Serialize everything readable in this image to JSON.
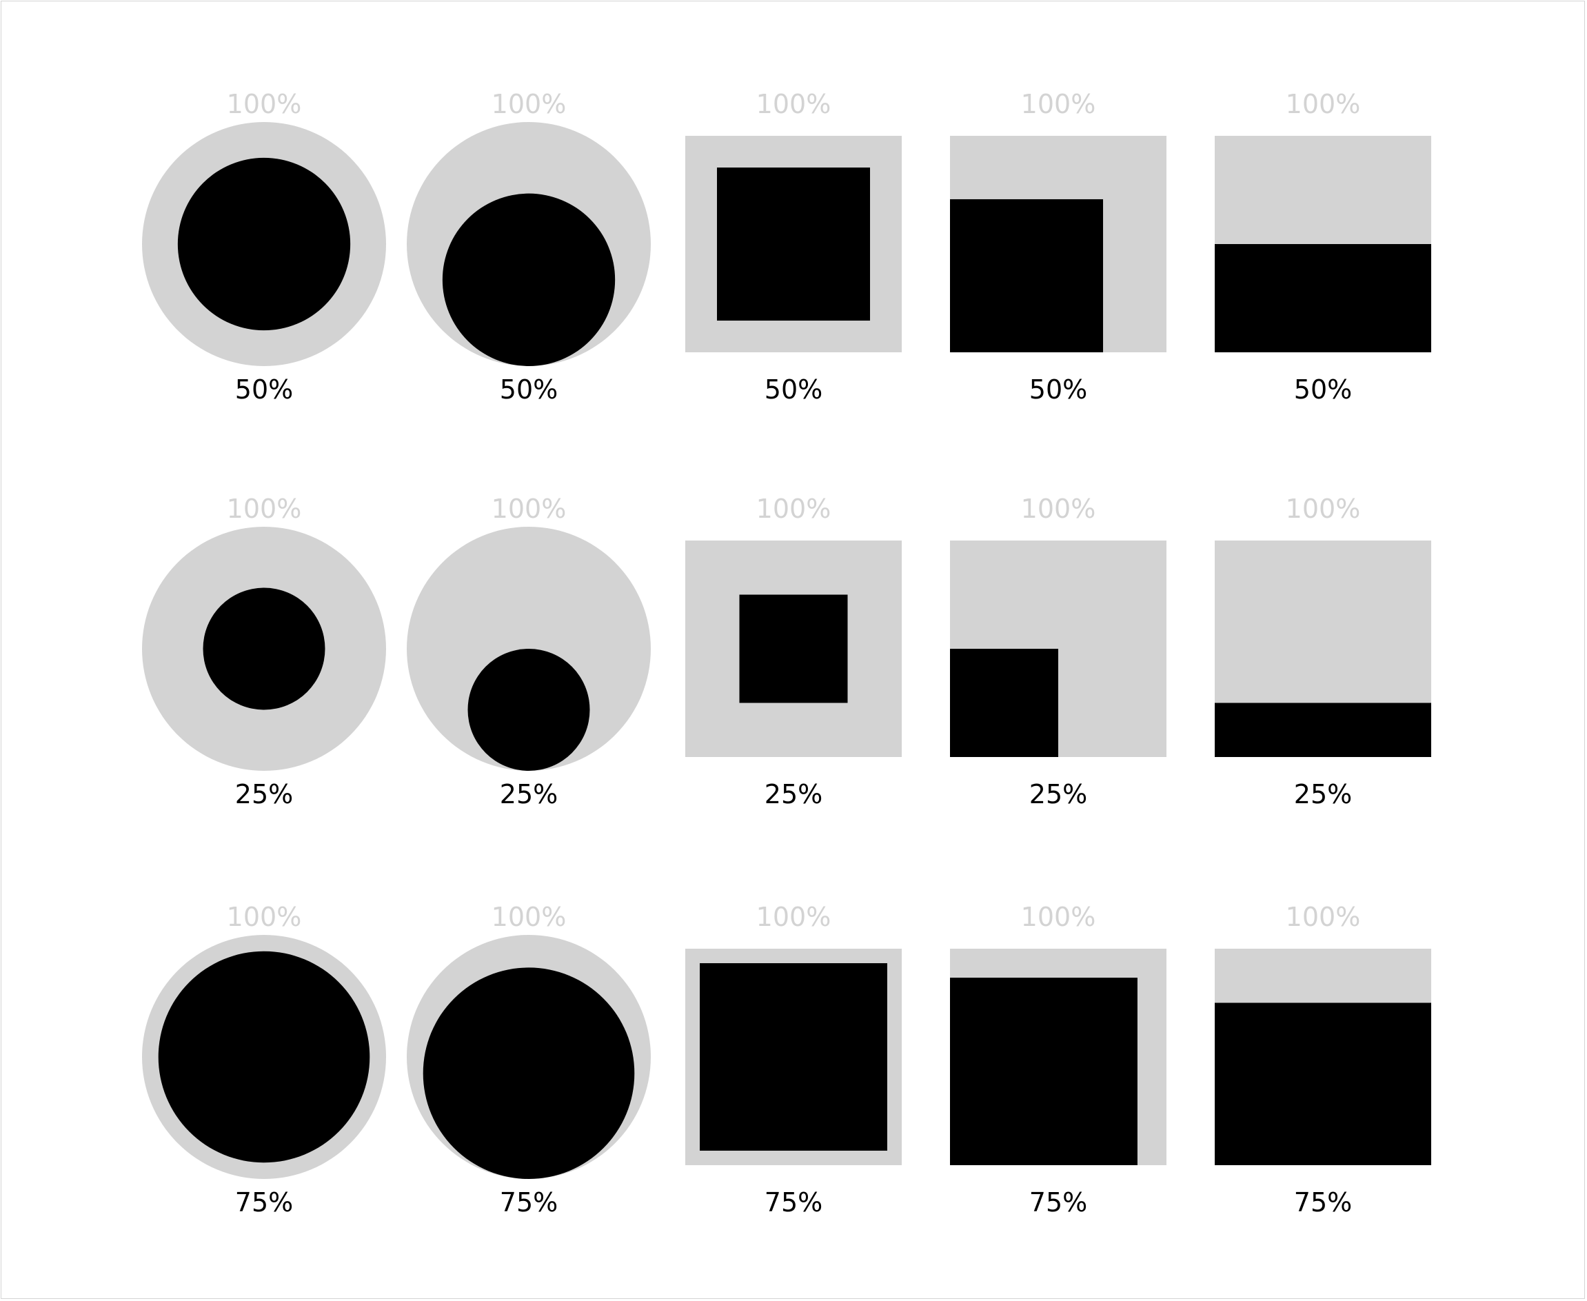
{
  "colors": {
    "whole": "#d3d3d3",
    "part": "#000000",
    "whole_label": "#d3d3d3",
    "part_label": "#000000",
    "background": "#ffffff"
  },
  "whole_label": "100%",
  "shape_variants": [
    "circle-centered",
    "circle-bottom-aligned",
    "square-centered",
    "square-bottom-left",
    "bar-bottom"
  ],
  "rows": [
    {
      "fraction": 0.5,
      "label": "50%"
    },
    {
      "fraction": 0.25,
      "label": "25%"
    },
    {
      "fraction": 0.75,
      "label": "75%"
    }
  ]
}
